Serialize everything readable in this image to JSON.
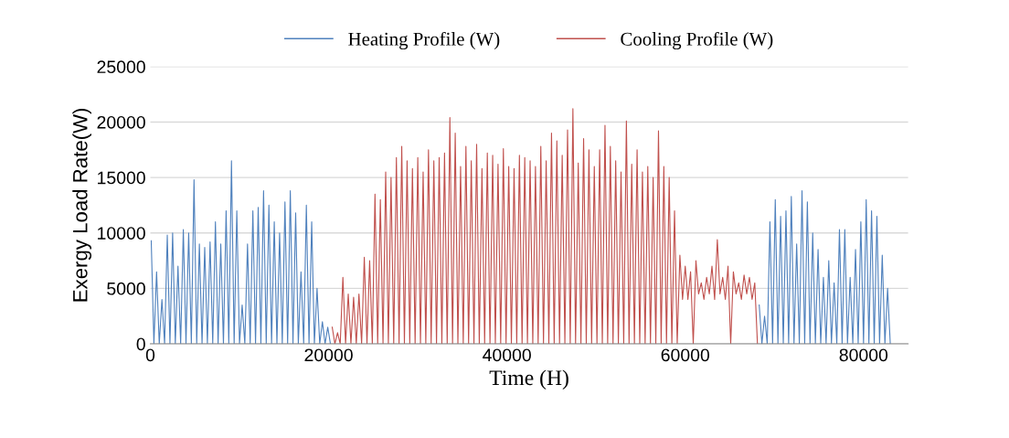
{
  "chart_data": {
    "type": "line",
    "xlabel": "Time (H)",
    "ylabel": "Exergy Load Rate(W)",
    "xlim": [
      0,
      85000
    ],
    "xticks": [
      0,
      20000,
      40000,
      60000,
      80000
    ],
    "ylim": [
      0,
      25000
    ],
    "yticks": [
      0,
      5000,
      10000,
      15000,
      20000,
      25000
    ],
    "grid": "y",
    "legend": "top",
    "marker": "none",
    "line_style": "solid",
    "series": [
      {
        "name": "Heating Profile (W)",
        "color": "#4f81bd",
        "x": [
          100,
          400,
          700,
          1000,
          1300,
          1600,
          1900,
          2200,
          2500,
          2800,
          3100,
          3400,
          3700,
          4000,
          4300,
          4600,
          4900,
          5200,
          5500,
          5800,
          6100,
          6400,
          6700,
          7000,
          7300,
          7600,
          7900,
          8200,
          8500,
          8800,
          9100,
          9400,
          9700,
          10000,
          10300,
          10600,
          10900,
          11200,
          11500,
          11800,
          12100,
          12400,
          12700,
          13000,
          13300,
          13600,
          13900,
          14200,
          14500,
          14800,
          15100,
          15400,
          15700,
          16000,
          16300,
          16600,
          16900,
          17200,
          17500,
          17800,
          18100,
          18400,
          18700,
          19000,
          19300,
          19600,
          19900,
          20200,
          44000,
          68300,
          68600,
          68900,
          69200,
          69500,
          69800,
          70100,
          70400,
          70700,
          71000,
          71300,
          71600,
          71900,
          72200,
          72500,
          72800,
          73100,
          73400,
          73700,
          74000,
          74300,
          74600,
          74900,
          75200,
          75500,
          75800,
          76100,
          76400,
          76700,
          77000,
          77300,
          77600,
          77900,
          78200,
          78500,
          78800,
          79100,
          79400,
          79700,
          80000,
          80300,
          80600,
          80900,
          81200,
          81500,
          81800,
          82100,
          82400,
          82700,
          83000
        ],
        "values": [
          9300,
          0,
          6500,
          0,
          4000,
          0,
          9800,
          0,
          10000,
          0,
          7000,
          0,
          10300,
          0,
          10000,
          0,
          14800,
          0,
          9000,
          0,
          8700,
          0,
          9200,
          0,
          11000,
          0,
          9000,
          0,
          12000,
          0,
          16500,
          0,
          12000,
          0,
          3500,
          0,
          9000,
          0,
          12000,
          0,
          12300,
          0,
          13800,
          0,
          12500,
          0,
          11000,
          0,
          10000,
          0,
          12800,
          0,
          13800,
          0,
          11800,
          0,
          6500,
          0,
          12500,
          0,
          11000,
          0,
          5000,
          0,
          2000,
          0,
          1500,
          0,
          null,
          3500,
          0,
          2500,
          0,
          11000,
          0,
          13000,
          0,
          11500,
          0,
          12000,
          0,
          13300,
          0,
          9000,
          0,
          13800,
          0,
          12800,
          0,
          10000,
          0,
          8500,
          0,
          6000,
          0,
          7500,
          0,
          5500,
          0,
          10300,
          0,
          10300,
          0,
          6000,
          0,
          8500,
          0,
          11000,
          0,
          13000,
          0,
          12000,
          0,
          11500,
          0,
          8000,
          0,
          5000,
          0
        ]
      },
      {
        "name": "Cooling Profile (W)",
        "color": "#c0504d",
        "x": [
          20400,
          20700,
          21000,
          21300,
          21600,
          21900,
          22200,
          22500,
          22800,
          23100,
          23400,
          23700,
          24000,
          24300,
          24600,
          24900,
          25200,
          25500,
          25800,
          26100,
          26400,
          26700,
          27000,
          27300,
          27600,
          27900,
          28200,
          28500,
          28800,
          29100,
          29400,
          29700,
          30000,
          30300,
          30600,
          30900,
          31200,
          31500,
          31800,
          32100,
          32400,
          32700,
          33000,
          33300,
          33600,
          33900,
          34200,
          34500,
          34800,
          35100,
          35400,
          35700,
          36000,
          36300,
          36600,
          36900,
          37200,
          37500,
          37800,
          38100,
          38400,
          38700,
          39000,
          39300,
          39600,
          39900,
          40200,
          40500,
          40800,
          41100,
          41400,
          41700,
          42000,
          42300,
          42600,
          42900,
          43200,
          43500,
          43800,
          44100,
          44400,
          44700,
          45000,
          45300,
          45600,
          45900,
          46200,
          46500,
          46800,
          47100,
          47400,
          47700,
          48000,
          48300,
          48600,
          48900,
          49200,
          49500,
          49800,
          50100,
          50400,
          50700,
          51000,
          51300,
          51600,
          51900,
          52200,
          52500,
          52800,
          53100,
          53400,
          53700,
          54000,
          54300,
          54600,
          54900,
          55200,
          55500,
          55800,
          56100,
          56400,
          56700,
          57000,
          57300,
          57600,
          57900,
          58200,
          58500,
          58800,
          59100,
          59400,
          59700,
          60000,
          60300,
          60600,
          60900,
          61200,
          61500,
          61800,
          62100,
          62400,
          62700,
          63000,
          63300,
          63600,
          63900,
          64200,
          64500,
          64800,
          65100,
          65400,
          65700,
          66000,
          66300,
          66600,
          66900,
          67200,
          67500,
          67800,
          68100
        ],
        "values": [
          1500,
          0,
          1000,
          0,
          6000,
          0,
          4500,
          0,
          4200,
          0,
          4500,
          0,
          7800,
          0,
          7500,
          0,
          13500,
          0,
          13000,
          0,
          15500,
          0,
          15000,
          0,
          16800,
          0,
          17800,
          0,
          16500,
          0,
          15800,
          0,
          16800,
          0,
          15500,
          0,
          17500,
          0,
          16500,
          0,
          16800,
          0,
          17200,
          0,
          20400,
          0,
          19000,
          0,
          16000,
          0,
          17800,
          0,
          16500,
          0,
          18000,
          0,
          15800,
          0,
          17200,
          0,
          17000,
          0,
          16200,
          0,
          17600,
          0,
          16000,
          0,
          15800,
          0,
          17000,
          0,
          16800,
          0,
          16500,
          0,
          16000,
          0,
          17800,
          0,
          16500,
          0,
          19000,
          0,
          18300,
          0,
          17000,
          0,
          19300,
          0,
          21200,
          0,
          16300,
          0,
          18500,
          0,
          17500,
          0,
          16000,
          0,
          17500,
          0,
          19700,
          0,
          17800,
          0,
          16500,
          0,
          15500,
          0,
          20100,
          0,
          16200,
          0,
          17500,
          0,
          15500,
          0,
          16000,
          0,
          15000,
          0,
          19200,
          0,
          16000,
          0,
          15000,
          0,
          12000,
          0,
          8000,
          4000,
          7000,
          4000,
          6500,
          0,
          7500,
          4500,
          5500,
          4000,
          6000,
          4500,
          7000,
          4000,
          9400,
          4500,
          6000,
          4000,
          7000,
          0,
          6500,
          4500,
          5500,
          4000,
          6200,
          4500,
          6000,
          4000,
          5500,
          0
        ]
      }
    ]
  }
}
